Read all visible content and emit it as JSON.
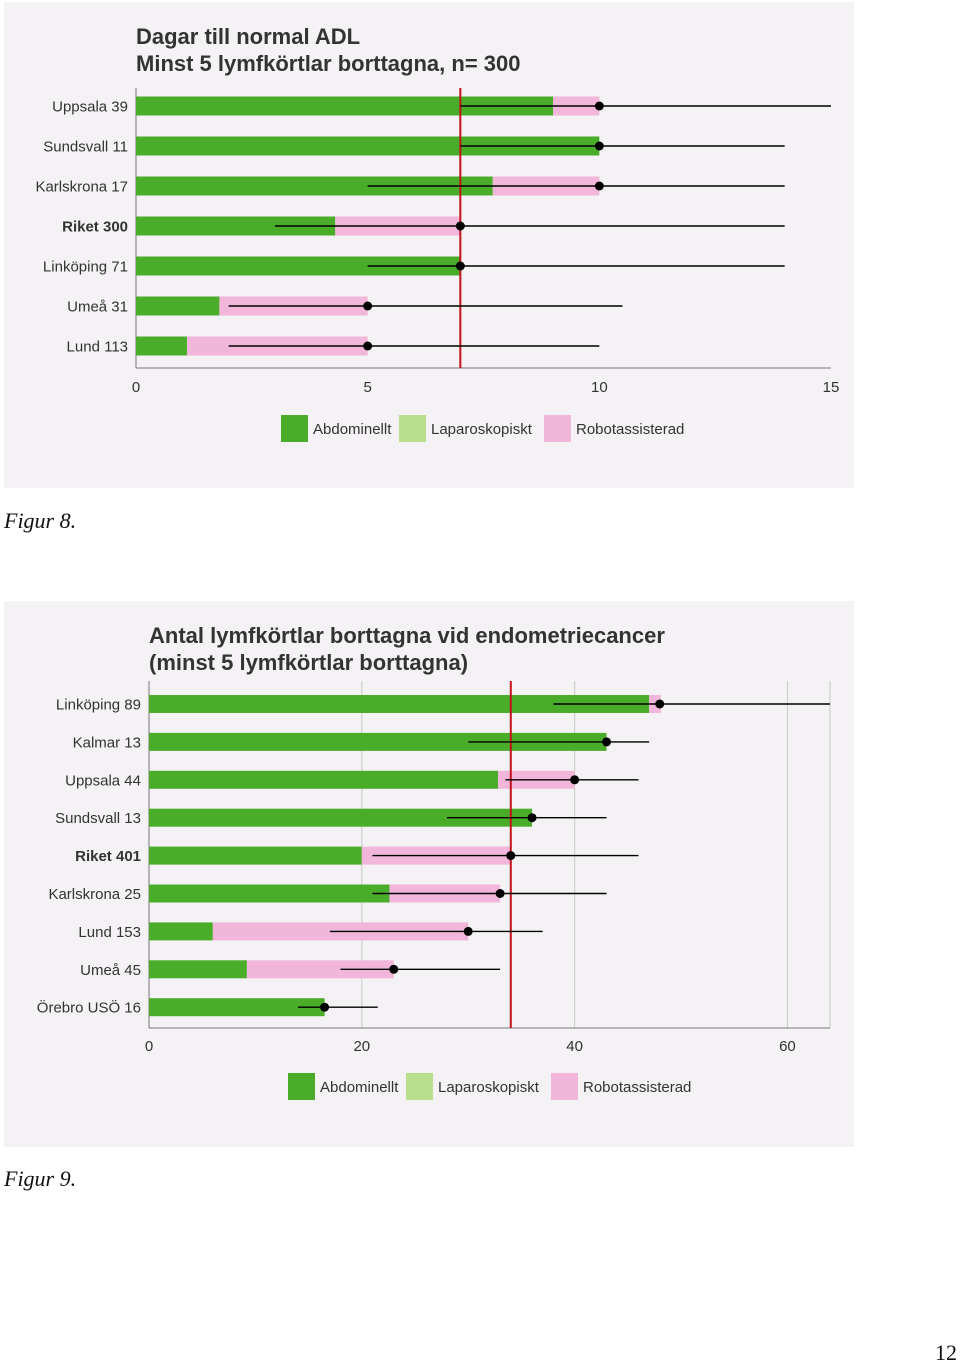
{
  "colors": {
    "abdominal": "#4aad2a",
    "laparoscopic": "#b8df8e",
    "robotic": "#f1b6da",
    "reference_line": "#c4121a",
    "grid": "#c8c8c8",
    "whisker": "#000000"
  },
  "figures": [
    {
      "caption": "Figur 8."
    },
    {
      "caption": "Figur 9."
    }
  ],
  "page_number": "12",
  "chart_data": [
    {
      "type": "bar",
      "stacked": true,
      "orientation": "horizontal",
      "title_lines": [
        "Dagar till normal ADL",
        "Minst 5 lymfkörtlar borttagna, n= 300"
      ],
      "categories": [
        "Uppsala 39",
        "Sundsvall 11",
        "Karlskrona 17",
        "Riket 300",
        "Linköping 71",
        "Umeå 31",
        "Lund 113"
      ],
      "bold_categories": [
        "Riket 300"
      ],
      "legend": [
        "Abdominellt",
        "Laparoskopiskt",
        "Robotassisterad"
      ],
      "legend_position": "bottom",
      "series": [
        {
          "name": "Abdominellt",
          "values": [
            9.0,
            10.0,
            7.7,
            4.3,
            7.0,
            1.8,
            1.1
          ]
        },
        {
          "name": "Laparoskopiskt",
          "values": [
            0,
            0,
            0,
            0,
            0,
            0,
            0
          ]
        },
        {
          "name": "Robotassisterad",
          "values": [
            1.0,
            0,
            2.3,
            2.7,
            0,
            3.2,
            3.9
          ]
        }
      ],
      "point": [
        10,
        10,
        10,
        7,
        7,
        5,
        5
      ],
      "whisker_low": [
        7,
        7,
        5,
        3,
        5,
        2,
        2
      ],
      "whisker_high": [
        15,
        14,
        14,
        14,
        14,
        10.5,
        10
      ],
      "reference_line": 7,
      "xlim": [
        0,
        15
      ],
      "xticks": [
        0,
        5,
        10,
        15
      ],
      "grid": false
    },
    {
      "type": "bar",
      "stacked": true,
      "orientation": "horizontal",
      "title_lines": [
        "Antal lymfkörtlar borttagna vid endometriecancer",
        "(minst 5 lymfkörtlar borttagna)"
      ],
      "categories": [
        "Linköping 89",
        "Kalmar 13",
        "Uppsala 44",
        "Sundsvall 13",
        "Riket 401",
        "Karlskrona 25",
        "Lund 153",
        "Umeå 45",
        "Örebro USÖ 16"
      ],
      "bold_categories": [
        "Riket 401"
      ],
      "legend": [
        "Abdominellt",
        "Laparoskopiskt",
        "Robotassisterad"
      ],
      "legend_position": "bottom",
      "series": [
        {
          "name": "Abdominellt",
          "values": [
            47,
            43,
            32.8,
            36,
            20,
            22.6,
            6,
            9.2,
            16.5
          ]
        },
        {
          "name": "Laparoskopiskt",
          "values": [
            0,
            0,
            0,
            0,
            0,
            0,
            0,
            0,
            0
          ]
        },
        {
          "name": "Robotassisterad",
          "values": [
            1.1,
            0,
            7.2,
            0,
            14,
            10.4,
            24,
            13.8,
            0
          ]
        }
      ],
      "point": [
        48,
        43,
        40,
        36,
        34,
        33,
        30,
        23,
        16.5
      ],
      "whisker_low": [
        38,
        30,
        33.5,
        28,
        21,
        21,
        17,
        18,
        14
      ],
      "whisker_high": [
        64,
        47,
        46,
        43,
        46,
        43,
        37,
        33,
        21.5
      ],
      "reference_line": 34,
      "xlim": [
        0,
        64
      ],
      "xticks": [
        0,
        20,
        40,
        60
      ],
      "grid": true
    }
  ]
}
